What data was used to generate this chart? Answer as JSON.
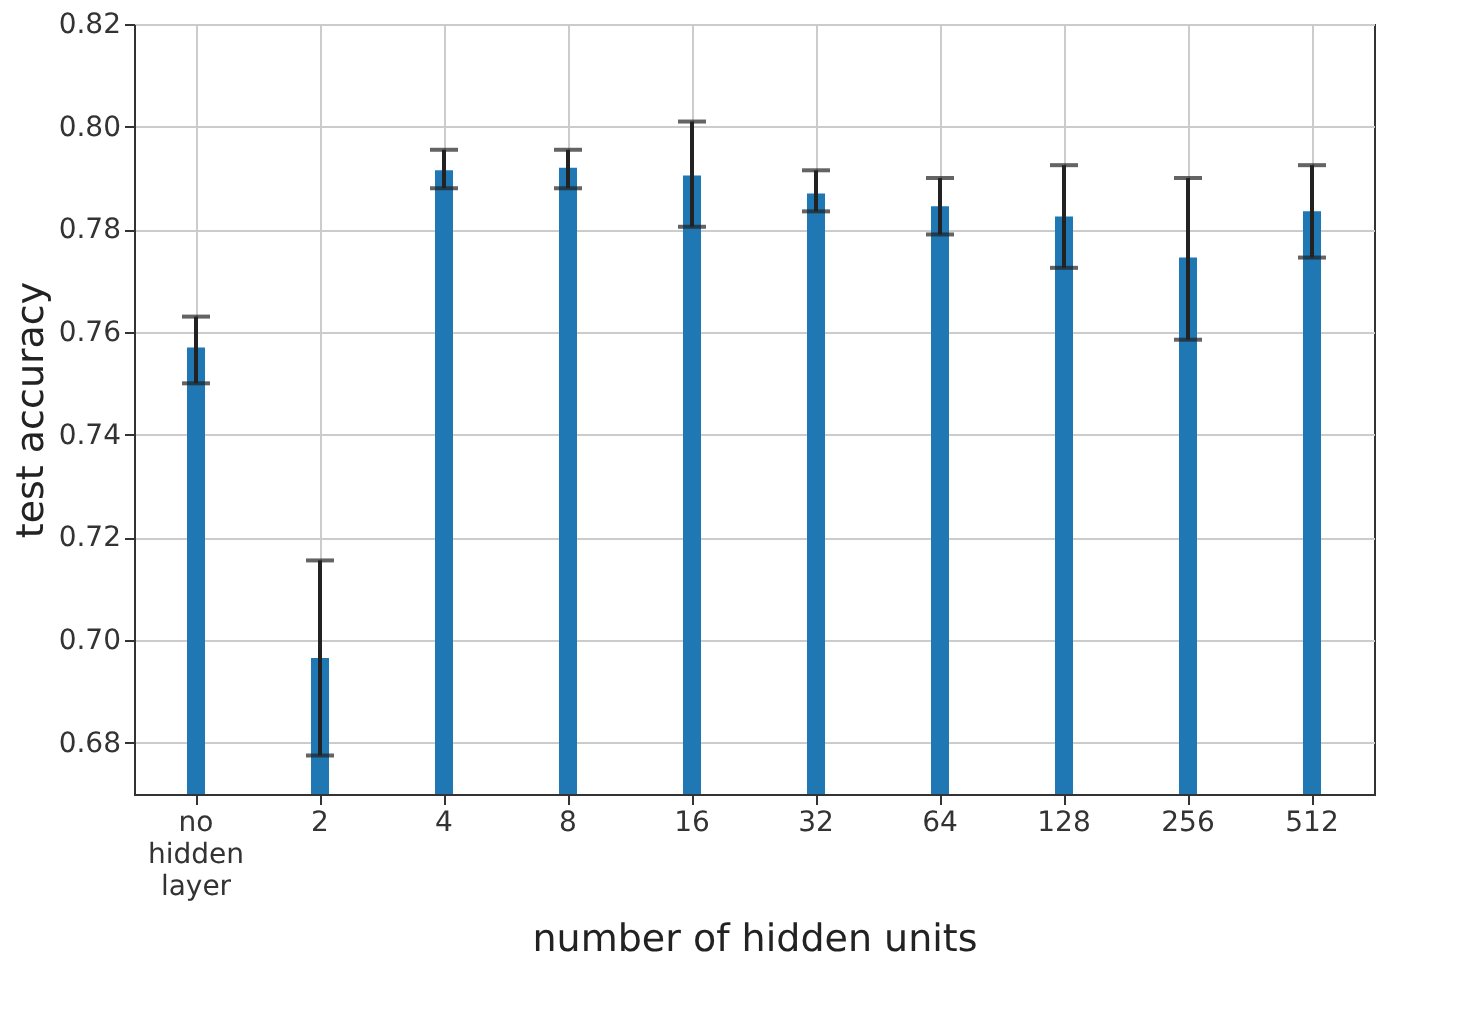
{
  "chart_data": {
    "type": "bar",
    "xlabel": "number of hidden units",
    "ylabel": "test accuracy",
    "categories": [
      "no hidden layer",
      "2",
      "4",
      "8",
      "16",
      "32",
      "64",
      "128",
      "256",
      "512"
    ],
    "values": [
      0.757,
      0.6965,
      0.7915,
      0.792,
      0.7905,
      0.787,
      0.7845,
      0.7825,
      0.7745,
      0.7835
    ],
    "errors": [
      [
        0.75,
        0.763
      ],
      [
        0.6775,
        0.7155
      ],
      [
        0.788,
        0.7955
      ],
      [
        0.788,
        0.7955
      ],
      [
        0.7805,
        0.801
      ],
      [
        0.7835,
        0.7915
      ],
      [
        0.779,
        0.79
      ],
      [
        0.7725,
        0.7925
      ],
      [
        0.7585,
        0.79
      ],
      [
        0.7745,
        0.7925
      ]
    ],
    "color": "#1f77b4",
    "ylim": [
      0.67,
      0.82
    ],
    "yticks": [
      0.68,
      {
        "value": 0.7,
        "label": "0.70"
      },
      0.72,
      0.74,
      0.76,
      0.78,
      {
        "value": 0.8,
        "label": "0.80"
      },
      0.82
    ],
    "grid": true
  }
}
